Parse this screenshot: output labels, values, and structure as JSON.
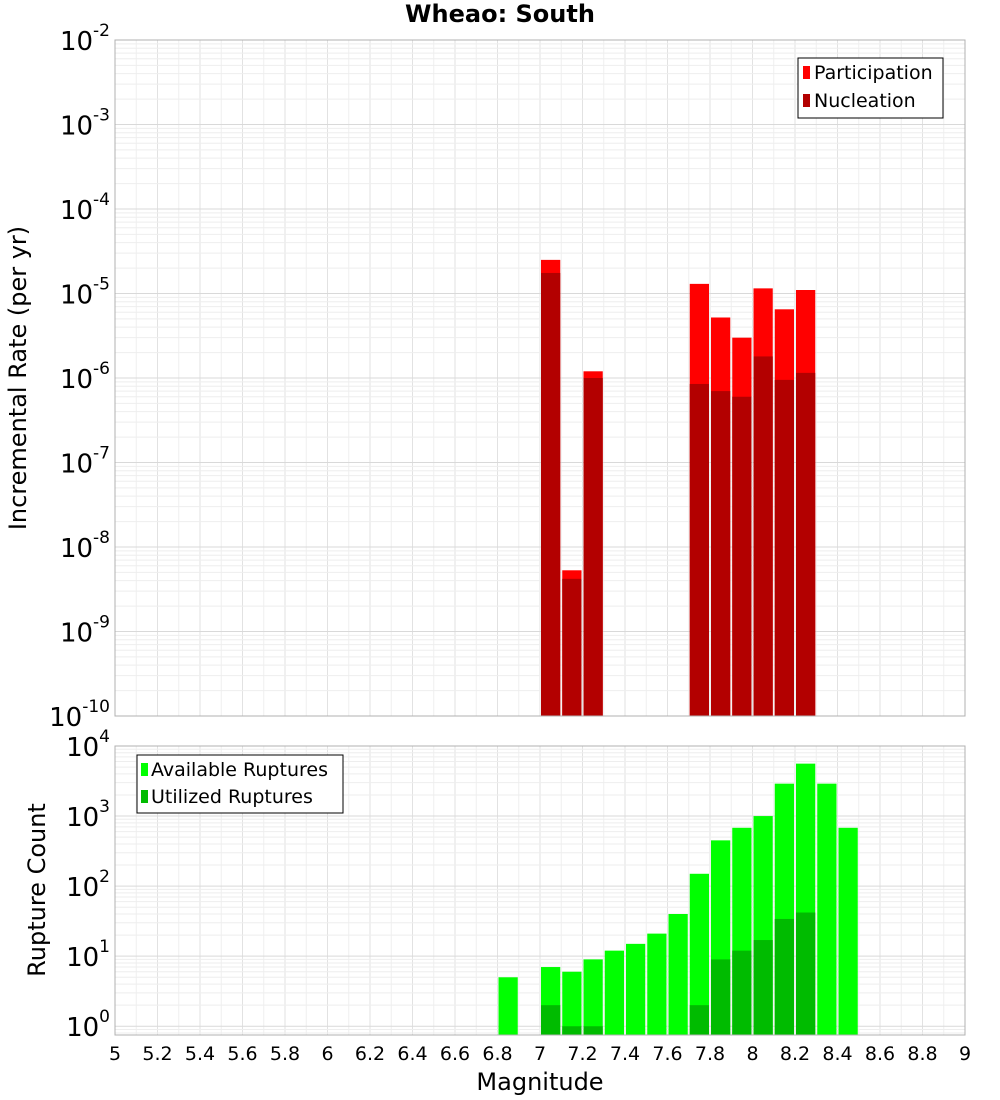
{
  "chart_data": [
    {
      "type": "bar",
      "title": "Wheao: South",
      "xlabel": "",
      "ylabel": "Incremental Rate (per yr)",
      "yscale": "log",
      "xlim": [
        5,
        9
      ],
      "ylim": [
        1e-10,
        0.01
      ],
      "yticks": [
        {
          "base": "10",
          "exp": "-10"
        },
        {
          "base": "10",
          "exp": "-9"
        },
        {
          "base": "10",
          "exp": "-8"
        },
        {
          "base": "10",
          "exp": "-7"
        },
        {
          "base": "10",
          "exp": "-6"
        },
        {
          "base": "10",
          "exp": "-5"
        },
        {
          "base": "10",
          "exp": "-4"
        },
        {
          "base": "10",
          "exp": "-3"
        },
        {
          "base": "10",
          "exp": "-2"
        }
      ],
      "grid": true,
      "legend_position": "top-right",
      "bar_width": 0.1,
      "series": [
        {
          "name": "Participation",
          "color": "#ff0000",
          "x": [
            7.05,
            7.15,
            7.25,
            7.75,
            7.85,
            7.95,
            8.05,
            8.15,
            8.25
          ],
          "values": [
            2.5e-05,
            5.3e-09,
            1.2e-06,
            1.3e-05,
            5.2e-06,
            3e-06,
            1.15e-05,
            6.5e-06,
            1.1e-05
          ]
        },
        {
          "name": "Nucleation",
          "color": "#b30000",
          "x": [
            7.05,
            7.15,
            7.25,
            7.75,
            7.85,
            7.95,
            8.05,
            8.15,
            8.25
          ],
          "values": [
            1.75e-05,
            4.2e-09,
            1e-06,
            8.5e-07,
            7e-07,
            6e-07,
            1.8e-06,
            9.5e-07,
            1.15e-06
          ]
        }
      ]
    },
    {
      "type": "bar",
      "title": "",
      "xlabel": "Magnitude",
      "ylabel": "Rupture Count",
      "yscale": "log",
      "xlim": [
        5,
        9
      ],
      "ylim": [
        0.75,
        10000
      ],
      "xticks": [
        "5",
        "5.2",
        "5.4",
        "5.6",
        "5.8",
        "6",
        "6.2",
        "6.4",
        "6.6",
        "6.8",
        "7",
        "7.2",
        "7.4",
        "7.6",
        "7.8",
        "8",
        "8.2",
        "8.4",
        "8.6",
        "8.8",
        "9"
      ],
      "yticks": [
        {
          "base": "10",
          "exp": "0"
        },
        {
          "base": "10",
          "exp": "1"
        },
        {
          "base": "10",
          "exp": "2"
        },
        {
          "base": "10",
          "exp": "3"
        },
        {
          "base": "10",
          "exp": "4"
        }
      ],
      "grid": true,
      "legend_position": "top-left",
      "bar_width": 0.1,
      "series": [
        {
          "name": "Available Ruptures",
          "color": "#00ff00",
          "x": [
            6.85,
            7.05,
            7.15,
            7.25,
            7.35,
            7.45,
            7.55,
            7.65,
            7.75,
            7.85,
            7.95,
            8.05,
            8.15,
            8.25,
            8.35,
            8.45
          ],
          "values": [
            5,
            7,
            6,
            9,
            12,
            15,
            21,
            40,
            150,
            450,
            680,
            1000,
            2900,
            5600,
            2900,
            680
          ]
        },
        {
          "name": "Utilized Ruptures",
          "color": "#00bb00",
          "x": [
            7.05,
            7.15,
            7.25,
            7.75,
            7.85,
            7.95,
            8.05,
            8.15,
            8.25
          ],
          "values": [
            2,
            1,
            1,
            2,
            9,
            12,
            17,
            34,
            42
          ]
        }
      ]
    }
  ]
}
